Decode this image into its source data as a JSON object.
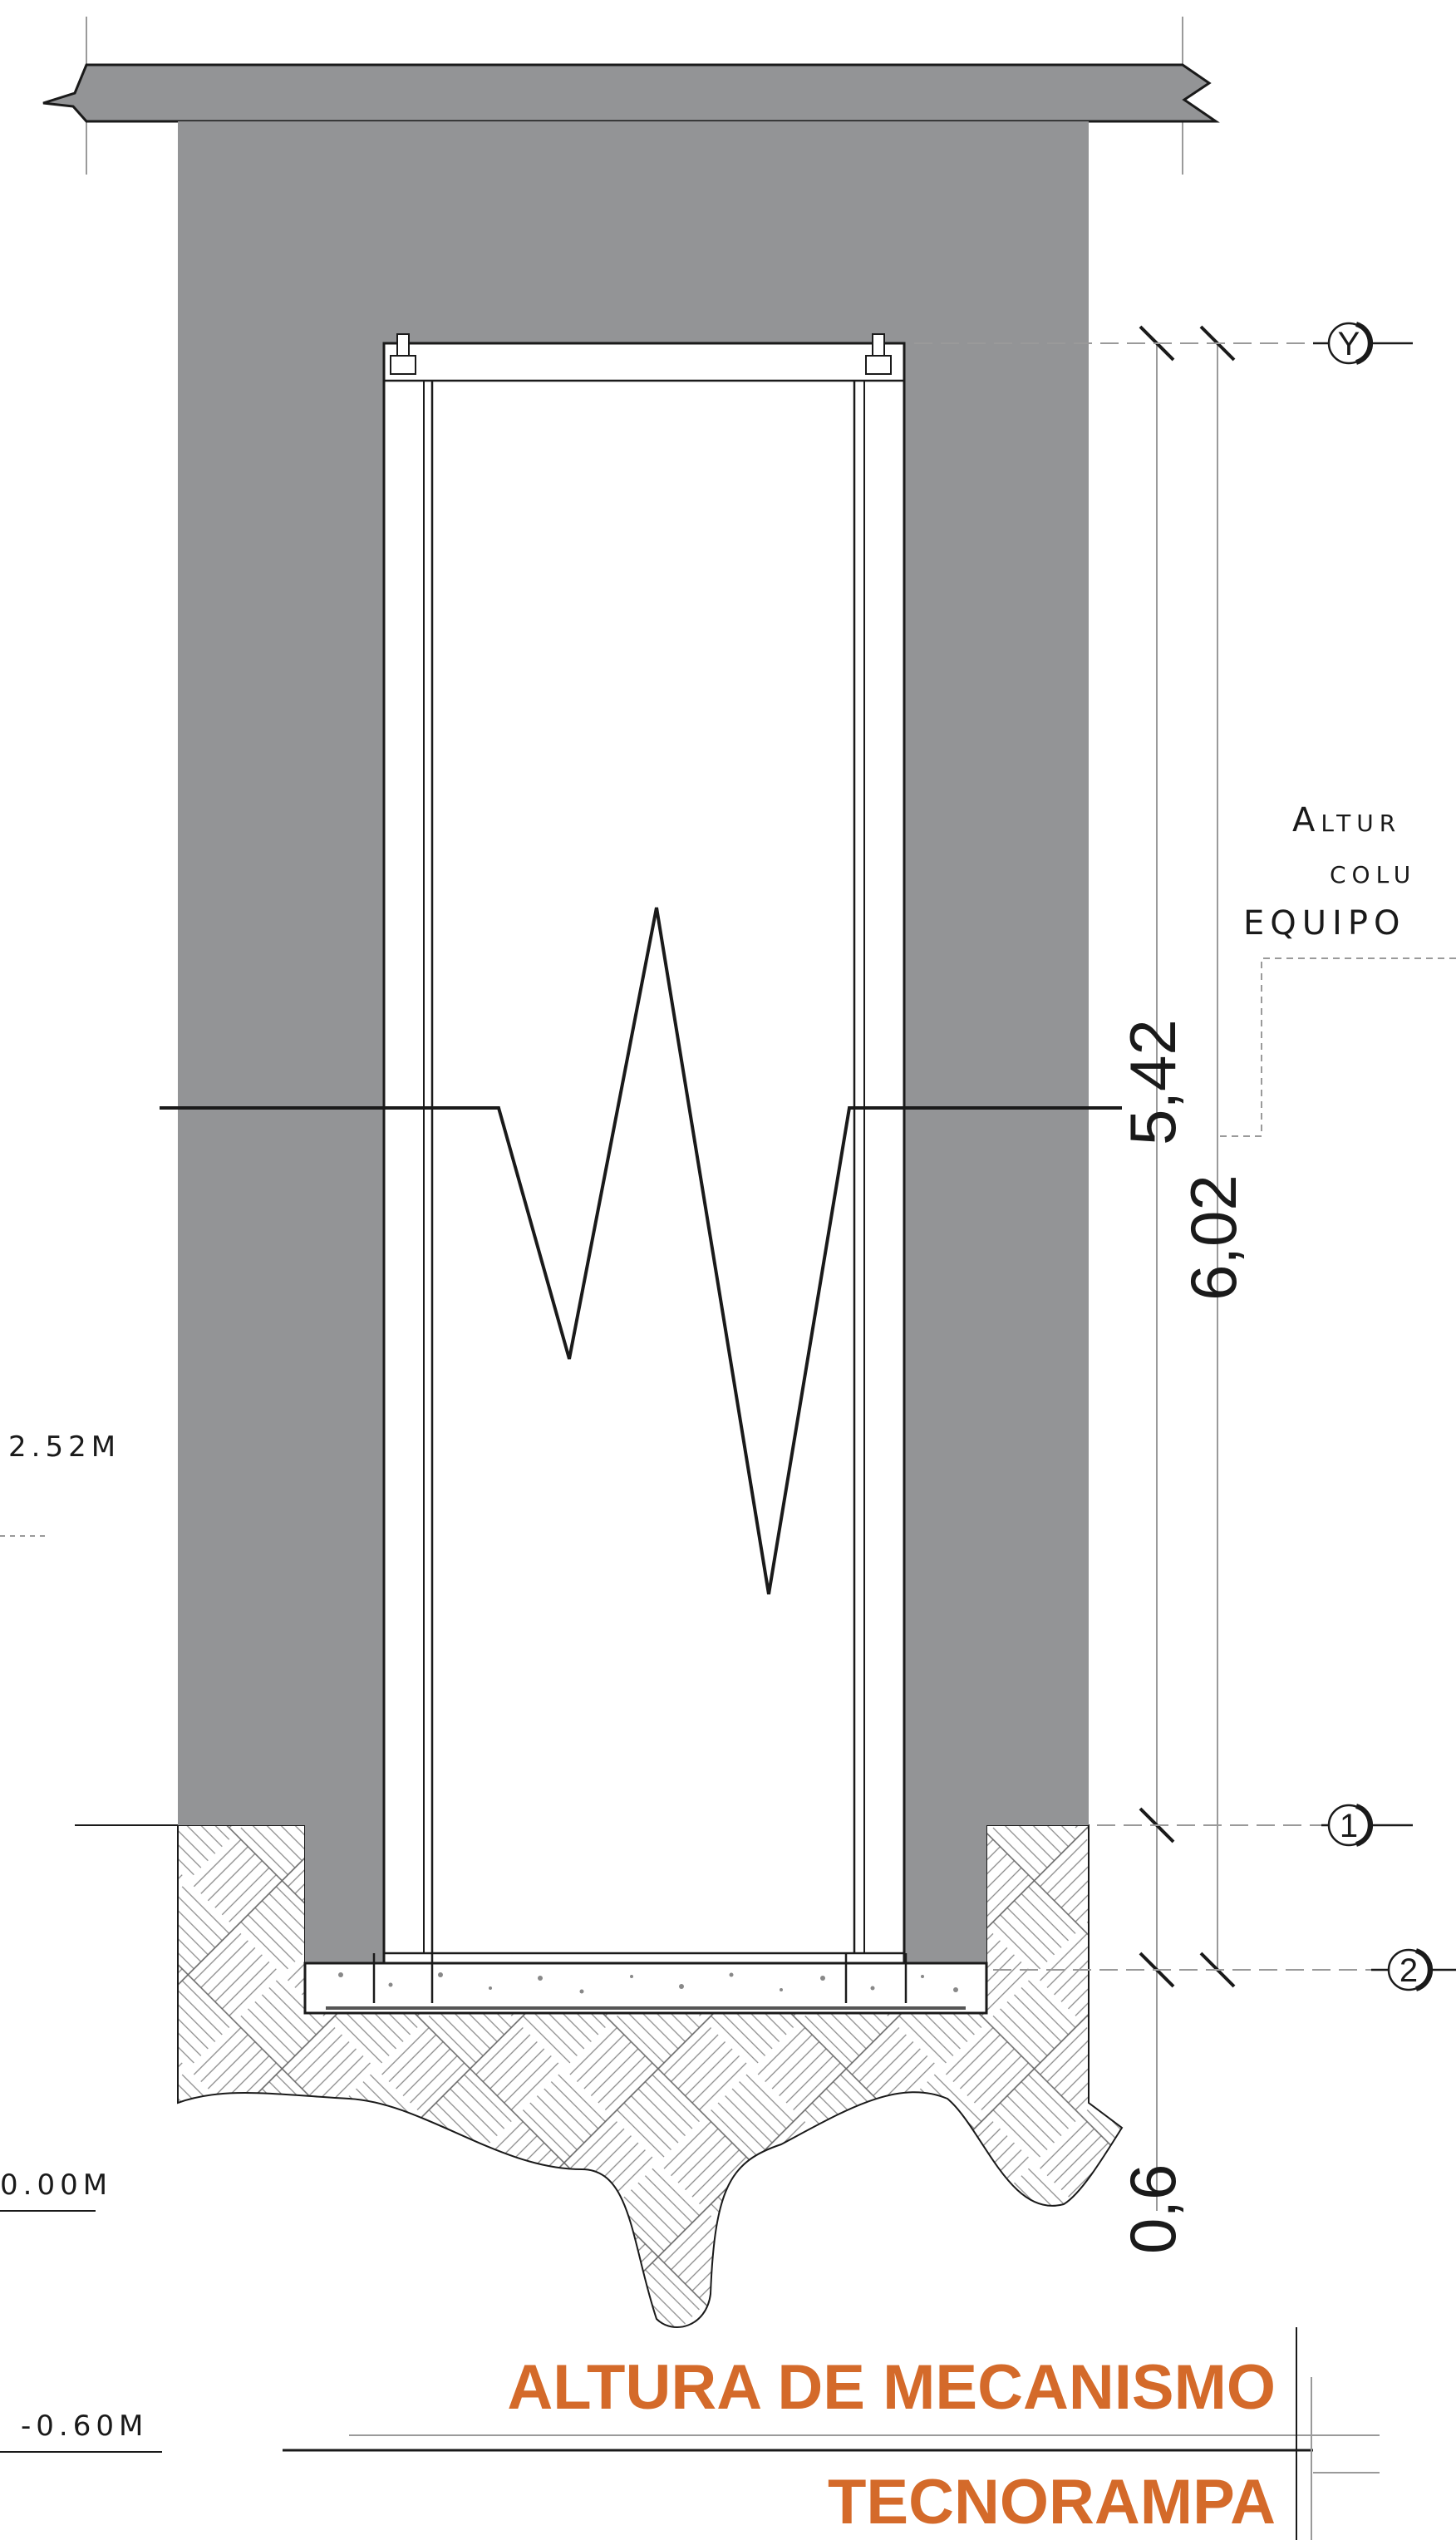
{
  "title": {
    "main": "ALTURA DE MECANISMO",
    "sub": "TECNORAMPA",
    "color": "#d46a2a"
  },
  "dimensions": {
    "inner": "5,42",
    "outer": "6,02",
    "pit": "0,6"
  },
  "levels": {
    "mid": "2.52m",
    "zero": "0.00m",
    "pit": "-0.60m"
  },
  "note": {
    "line1": "Altur",
    "line2": "colu",
    "line3": "equipo"
  },
  "axes": {
    "top": "Y",
    "ground": "1",
    "pit": "2"
  },
  "colors": {
    "wall": "#939496",
    "line": "#1a1a1a"
  }
}
